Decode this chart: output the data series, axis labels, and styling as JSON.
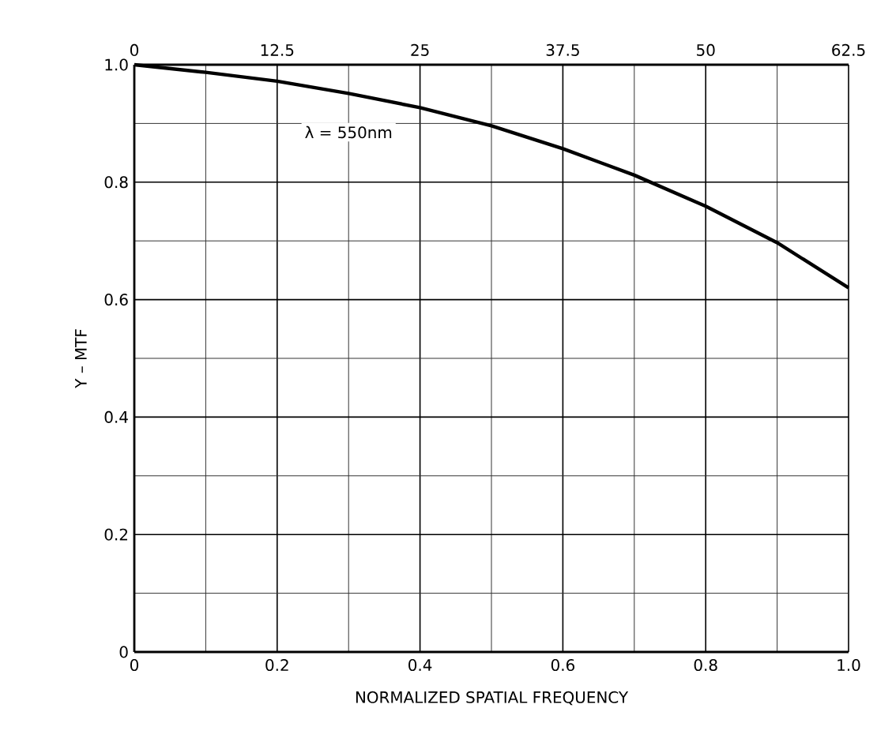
{
  "chart_data": {
    "type": "line",
    "xlabel": "NORMALIZED SPATIAL FREQUENCY",
    "ylabel": "Y – MTF",
    "x": [
      0,
      0.1,
      0.2,
      0.3,
      0.4,
      0.5,
      0.6,
      0.7,
      0.8,
      0.9,
      1.0
    ],
    "series": [
      {
        "color": "#000000",
        "values": [
          1.0,
          0.987,
          0.972,
          0.951,
          0.927,
          0.896,
          0.857,
          0.812,
          0.759,
          0.697,
          0.62
        ]
      }
    ],
    "xlim": [
      0,
      1.0
    ],
    "ylim": [
      0,
      1.0
    ],
    "xticks": [
      0,
      {
        "value": 0.1,
        "label": null
      },
      0.2,
      {
        "value": 0.3,
        "label": null
      },
      0.4,
      {
        "value": 0.5,
        "label": null
      },
      0.6,
      {
        "value": 0.7,
        "label": null
      },
      0.8,
      {
        "value": 0.9,
        "label": null
      },
      {
        "value": 1.0,
        "label": "1.0"
      }
    ],
    "yticks": [
      0,
      {
        "value": 0.1,
        "label": null
      },
      0.2,
      {
        "value": 0.3,
        "label": null
      },
      0.4,
      {
        "value": 0.5,
        "label": null
      },
      0.6,
      {
        "value": 0.7,
        "label": null
      },
      0.8,
      {
        "value": 0.9,
        "label": null
      },
      {
        "value": 1.0,
        "label": "1.0"
      }
    ],
    "x2lim": [
      0,
      62.5
    ],
    "x2ticks": [
      0,
      12.5,
      25,
      37.5,
      50,
      62.5
    ],
    "grid": true,
    "marker": "none",
    "line_style": "solid",
    "annotations": [
      "λ = 550nm"
    ]
  }
}
